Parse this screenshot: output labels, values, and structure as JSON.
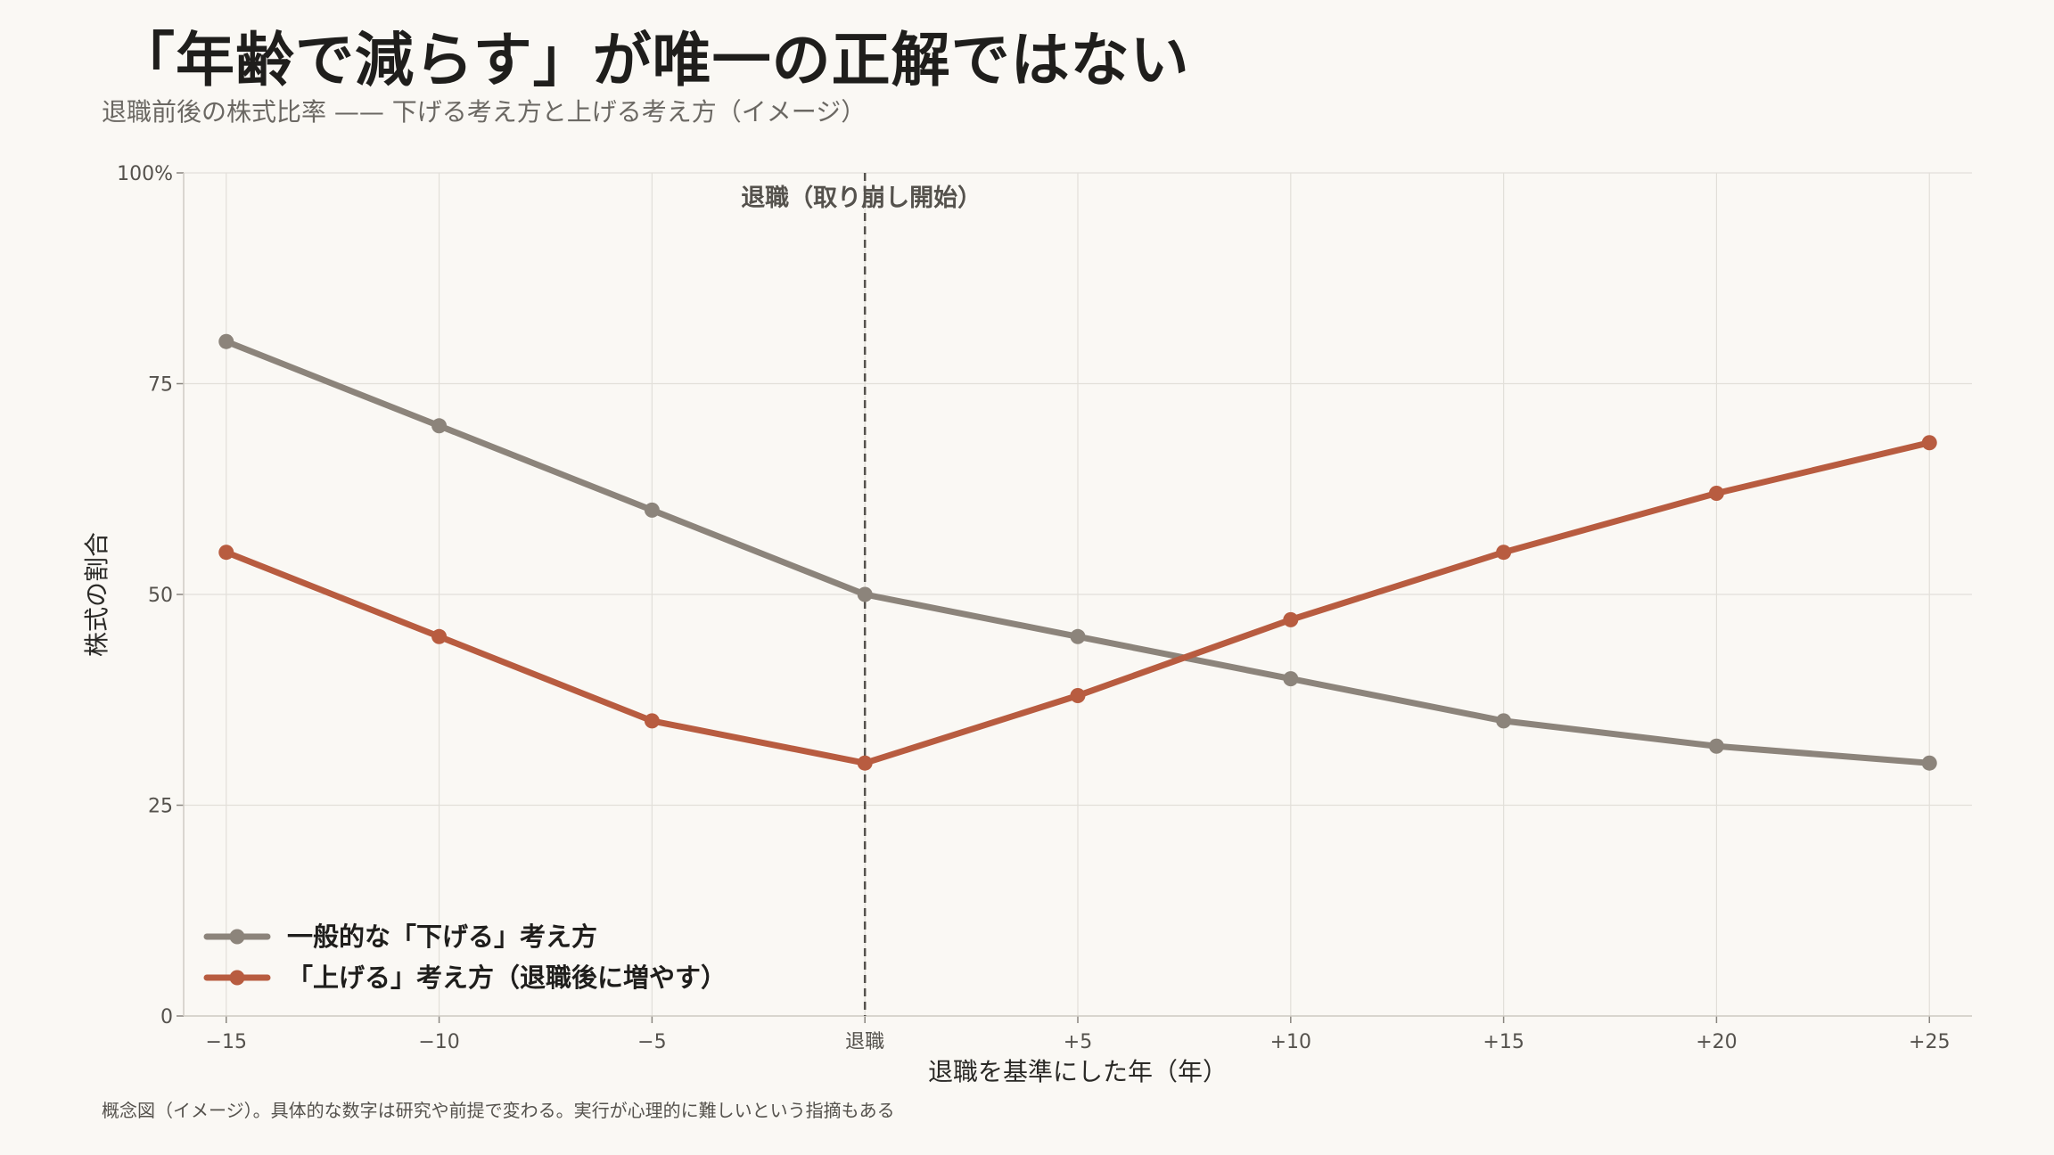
{
  "header": {
    "title": "「年齢で減らす」が唯一の正解ではない",
    "subtitle": "退職前後の株式比率 —— 下げる考え方と上げる考え方（イメージ）"
  },
  "footnote": "概念図（イメージ）。具体的な数字は研究や前提で変わる。実行が心理的に難しいという指摘もある",
  "chart_data": {
    "type": "line",
    "xlabel": "退職を基準にした年（年）",
    "ylabel": "株式の割合",
    "x": [
      -15,
      -10,
      -5,
      0,
      5,
      10,
      15,
      20,
      25
    ],
    "x_tick_labels": [
      "−15",
      "−10",
      "−5",
      "退職",
      "+5",
      "+10",
      "+15",
      "+20",
      "+25"
    ],
    "xlim": [
      -16,
      26
    ],
    "ylim": [
      0,
      100
    ],
    "y_ticks": [
      0,
      25,
      50,
      75,
      100
    ],
    "y_tick_labels": [
      "0",
      "25",
      "50",
      "75",
      "100%"
    ],
    "grid": true,
    "legend_position": "bottom-left",
    "annotation": {
      "x": 0,
      "label": "退職（取り崩し開始）",
      "style": "dashed-vertical-line"
    },
    "series": [
      {
        "name": "一般的な「下げる」考え方",
        "color": "#8c847b",
        "values": [
          80,
          70,
          60,
          50,
          45,
          40,
          35,
          32,
          30
        ]
      },
      {
        "name": "「上げる」考え方（退職後に増やす）",
        "color": "#b85c40",
        "values": [
          55,
          45,
          35,
          30,
          38,
          47,
          55,
          62,
          68
        ]
      }
    ]
  }
}
